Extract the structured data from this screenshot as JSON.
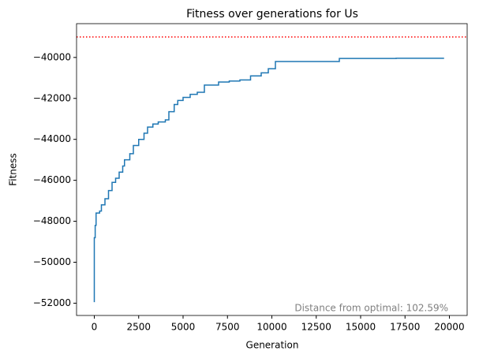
{
  "chart_data": {
    "type": "line",
    "title": "Fitness over generations for Us",
    "x_label": "Generation",
    "y_label": "Fitness",
    "annotation": "Distance from optimal: 102.59%",
    "reference_line": {
      "value": -39000,
      "color": "#ff0000"
    },
    "x": [
      0,
      0,
      50,
      50,
      100,
      100,
      300,
      300,
      400,
      400,
      600,
      600,
      800,
      800,
      1000,
      1000,
      1200,
      1200,
      1400,
      1400,
      1600,
      1600,
      1700,
      1700,
      2000,
      2000,
      2200,
      2200,
      2500,
      2500,
      2800,
      2800,
      3000,
      3000,
      3300,
      3300,
      3600,
      3600,
      4000,
      4000,
      4200,
      4200,
      4500,
      4500,
      4700,
      4700,
      5000,
      5000,
      5400,
      5400,
      5800,
      5800,
      6200,
      6200,
      7000,
      7000,
      7600,
      7600,
      8200,
      8200,
      8800,
      8800,
      9400,
      9400,
      9800,
      9800,
      10200,
      10200,
      13800,
      13800,
      17000,
      17000,
      19700
    ],
    "series": [
      {
        "color": "#1f77b4",
        "values": [
          -51950,
          -48800,
          -48800,
          -48200,
          -48200,
          -47600,
          -47600,
          -47500,
          -47500,
          -47200,
          -47200,
          -46900,
          -46900,
          -46500,
          -46500,
          -46100,
          -46100,
          -45900,
          -45900,
          -45600,
          -45600,
          -45300,
          -45300,
          -45000,
          -45000,
          -44700,
          -44700,
          -44300,
          -44300,
          -44000,
          -44000,
          -43700,
          -43700,
          -43400,
          -43400,
          -43250,
          -43250,
          -43150,
          -43150,
          -43050,
          -43050,
          -42650,
          -42650,
          -42300,
          -42300,
          -42100,
          -42100,
          -41950,
          -41950,
          -41800,
          -41800,
          -41700,
          -41700,
          -41350,
          -41350,
          -41200,
          -41200,
          -41150,
          -41150,
          -41100,
          -41100,
          -40900,
          -40900,
          -40750,
          -40750,
          -40550,
          -40550,
          -40200,
          -40200,
          -40050,
          -40050,
          -40040,
          -40040
        ]
      }
    ],
    "xlim": [
      -1000,
      21000
    ],
    "xticks": [
      0,
      2500,
      5000,
      7500,
      10000,
      12500,
      15000,
      17500,
      20000
    ],
    "ylim": [
      -52600,
      -38350
    ],
    "yticks": [
      {
        "value": -52000,
        "label": "−52000"
      },
      {
        "value": -50000,
        "label": "−50000"
      },
      {
        "value": -48000,
        "label": "−48000"
      },
      {
        "value": -46000,
        "label": "−46000"
      },
      {
        "value": -44000,
        "label": "−44000"
      },
      {
        "value": -42000,
        "label": "−42000"
      },
      {
        "value": -40000,
        "label": "−40000"
      }
    ]
  }
}
